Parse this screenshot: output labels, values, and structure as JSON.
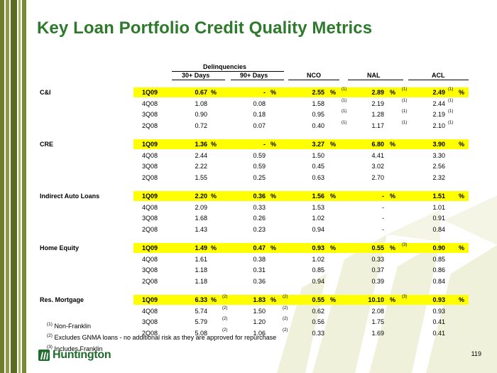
{
  "title": "Key Loan Portfolio Credit Quality Metrics",
  "page_number": "119",
  "logo_text": "Huntington",
  "headers": {
    "delinquencies": "Delinquencies",
    "d30": "30+ Days",
    "d90": "90+ Days",
    "nco": "NCO",
    "nal": "NAL",
    "acl": "ACL"
  },
  "groups": [
    {
      "category": "C&I",
      "rows": [
        {
          "period": "1Q09",
          "d30": "0.67",
          "d30p": "%",
          "d30f": "",
          "d90": "-",
          "d90p": "%",
          "d90f": "",
          "nco": "2.55",
          "ncop": "%",
          "ncof": "(1)",
          "nal": "2.89",
          "nalp": "%",
          "nalf": "(1)",
          "acl": "2.49",
          "aclf": "(1)",
          "aclp": "%"
        },
        {
          "period": "4Q08",
          "d30": "1.08",
          "d30p": "",
          "d30f": "",
          "d90": "0.08",
          "d90p": "",
          "d90f": "",
          "nco": "1.58",
          "ncop": "",
          "ncof": "(1)",
          "nal": "2.19",
          "nalp": "",
          "nalf": "(1)",
          "acl": "2.44",
          "aclf": "(1)",
          "aclp": ""
        },
        {
          "period": "3Q08",
          "d30": "0.90",
          "d30p": "",
          "d30f": "",
          "d90": "0.18",
          "d90p": "",
          "d90f": "",
          "nco": "0.95",
          "ncop": "",
          "ncof": "(1)",
          "nal": "1.28",
          "nalp": "",
          "nalf": "(1)",
          "acl": "2.19",
          "aclf": "(1)",
          "aclp": ""
        },
        {
          "period": "2Q08",
          "d30": "0.72",
          "d30p": "",
          "d30f": "",
          "d90": "0.07",
          "d90p": "",
          "d90f": "",
          "nco": "0.40",
          "ncop": "",
          "ncof": "(1)",
          "nal": "1.17",
          "nalp": "",
          "nalf": "(1)",
          "acl": "2.10",
          "aclf": "(1)",
          "aclp": ""
        }
      ]
    },
    {
      "category": "CRE",
      "rows": [
        {
          "period": "1Q09",
          "d30": "1.36",
          "d30p": "%",
          "d30f": "",
          "d90": "-",
          "d90p": "%",
          "d90f": "",
          "nco": "3.27",
          "ncop": "%",
          "ncof": "",
          "nal": "6.80",
          "nalp": "%",
          "nalf": "",
          "acl": "3.90",
          "aclf": "",
          "aclp": "%"
        },
        {
          "period": "4Q08",
          "d30": "2.44",
          "d30p": "",
          "d30f": "",
          "d90": "0.59",
          "d90p": "",
          "d90f": "",
          "nco": "1.50",
          "ncop": "",
          "ncof": "",
          "nal": "4.41",
          "nalp": "",
          "nalf": "",
          "acl": "3.30",
          "aclf": "",
          "aclp": ""
        },
        {
          "period": "3Q08",
          "d30": "2.22",
          "d30p": "",
          "d30f": "",
          "d90": "0.59",
          "d90p": "",
          "d90f": "",
          "nco": "0.45",
          "ncop": "",
          "ncof": "",
          "nal": "3.02",
          "nalp": "",
          "nalf": "",
          "acl": "2.56",
          "aclf": "",
          "aclp": ""
        },
        {
          "period": "2Q08",
          "d30": "1.55",
          "d30p": "",
          "d30f": "",
          "d90": "0.25",
          "d90p": "",
          "d90f": "",
          "nco": "0.63",
          "ncop": "",
          "ncof": "",
          "nal": "2.70",
          "nalp": "",
          "nalf": "",
          "acl": "2.32",
          "aclf": "",
          "aclp": ""
        }
      ]
    },
    {
      "category": "Indirect Auto Loans",
      "rows": [
        {
          "period": "1Q09",
          "d30": "2.20",
          "d30p": "%",
          "d30f": "",
          "d90": "0.36",
          "d90p": "%",
          "d90f": "",
          "nco": "1.56",
          "ncop": "%",
          "ncof": "",
          "nal": "-",
          "nalp": "%",
          "nalf": "",
          "acl": "1.51",
          "aclf": "",
          "aclp": "%"
        },
        {
          "period": "4Q08",
          "d30": "2.09",
          "d30p": "",
          "d30f": "",
          "d90": "0.33",
          "d90p": "",
          "d90f": "",
          "nco": "1.53",
          "ncop": "",
          "ncof": "",
          "nal": "-",
          "nalp": "",
          "nalf": "",
          "acl": "1.01",
          "aclf": "",
          "aclp": ""
        },
        {
          "period": "3Q08",
          "d30": "1.68",
          "d30p": "",
          "d30f": "",
          "d90": "0.26",
          "d90p": "",
          "d90f": "",
          "nco": "1.02",
          "ncop": "",
          "ncof": "",
          "nal": "-",
          "nalp": "",
          "nalf": "",
          "acl": "0.91",
          "aclf": "",
          "aclp": ""
        },
        {
          "period": "2Q08",
          "d30": "1.43",
          "d30p": "",
          "d30f": "",
          "d90": "0.23",
          "d90p": "",
          "d90f": "",
          "nco": "0.94",
          "ncop": "",
          "ncof": "",
          "nal": "-",
          "nalp": "",
          "nalf": "",
          "acl": "0.84",
          "aclf": "",
          "aclp": ""
        }
      ]
    },
    {
      "category": "Home Equity",
      "rows": [
        {
          "period": "1Q09",
          "d30": "1.49",
          "d30p": "%",
          "d30f": "",
          "d90": "0.47",
          "d90p": "%",
          "d90f": "",
          "nco": "0.93",
          "ncop": "%",
          "ncof": "",
          "nal": "0.55",
          "nalp": "%",
          "nalf": "(3)",
          "acl": "0.90",
          "aclf": "",
          "aclp": "%"
        },
        {
          "period": "4Q08",
          "d30": "1.61",
          "d30p": "",
          "d30f": "",
          "d90": "0.38",
          "d90p": "",
          "d90f": "",
          "nco": "1.02",
          "ncop": "",
          "ncof": "",
          "nal": "0.33",
          "nalp": "",
          "nalf": "",
          "acl": "0.85",
          "aclf": "",
          "aclp": ""
        },
        {
          "period": "3Q08",
          "d30": "1.18",
          "d30p": "",
          "d30f": "",
          "d90": "0.31",
          "d90p": "",
          "d90f": "",
          "nco": "0.85",
          "ncop": "",
          "ncof": "",
          "nal": "0.37",
          "nalp": "",
          "nalf": "",
          "acl": "0.86",
          "aclf": "",
          "aclp": ""
        },
        {
          "period": "2Q08",
          "d30": "1.18",
          "d30p": "",
          "d30f": "",
          "d90": "0.36",
          "d90p": "",
          "d90f": "",
          "nco": "0.94",
          "ncop": "",
          "ncof": "",
          "nal": "0.39",
          "nalp": "",
          "nalf": "",
          "acl": "0.84",
          "aclf": "",
          "aclp": ""
        }
      ]
    },
    {
      "category": "Res. Mortgage",
      "rows": [
        {
          "period": "1Q09",
          "d30": "6.33",
          "d30p": "%",
          "d30f": "(2)",
          "d90": "1.83",
          "d90p": "%",
          "d90f": "(2)",
          "nco": "0.55",
          "ncop": "%",
          "ncof": "",
          "nal": "10.10",
          "nalp": "%",
          "nalf": "(3)",
          "acl": "0.93",
          "aclf": "",
          "aclp": "%"
        },
        {
          "period": "4Q08",
          "d30": "5.74",
          "d30p": "",
          "d30f": "(2)",
          "d90": "1.50",
          "d90p": "",
          "d90f": "(2)",
          "nco": "0.62",
          "ncop": "",
          "ncof": "",
          "nal": "2.08",
          "nalp": "",
          "nalf": "",
          "acl": "0.93",
          "aclf": "",
          "aclp": ""
        },
        {
          "period": "3Q08",
          "d30": "5.79",
          "d30p": "",
          "d30f": "(2)",
          "d90": "1.20",
          "d90p": "",
          "d90f": "(2)",
          "nco": "0.56",
          "ncop": "",
          "ncof": "",
          "nal": "1.75",
          "nalp": "",
          "nalf": "",
          "acl": "0.41",
          "aclf": "",
          "aclp": ""
        },
        {
          "period": "2Q08",
          "d30": "5.08",
          "d30p": "",
          "d30f": "(2)",
          "d90": "1.06",
          "d90p": "",
          "d90f": "(2)",
          "nco": "0.33",
          "ncop": "",
          "ncof": "",
          "nal": "1.69",
          "nalp": "",
          "nalf": "",
          "acl": "0.41",
          "aclf": "",
          "aclp": ""
        }
      ]
    }
  ],
  "footnotes": [
    {
      "mark": "(1)",
      "text": "Non-Franklin"
    },
    {
      "mark": "(2)",
      "text": "Excludes GNMA loans - no additional risk as they are approved for repurchase"
    },
    {
      "mark": "(3)",
      "text": "Includes Franklin"
    }
  ],
  "colors": {
    "title": "#2e7a2c",
    "highlight": "#ffff00",
    "brand": "#1e6b2c"
  }
}
